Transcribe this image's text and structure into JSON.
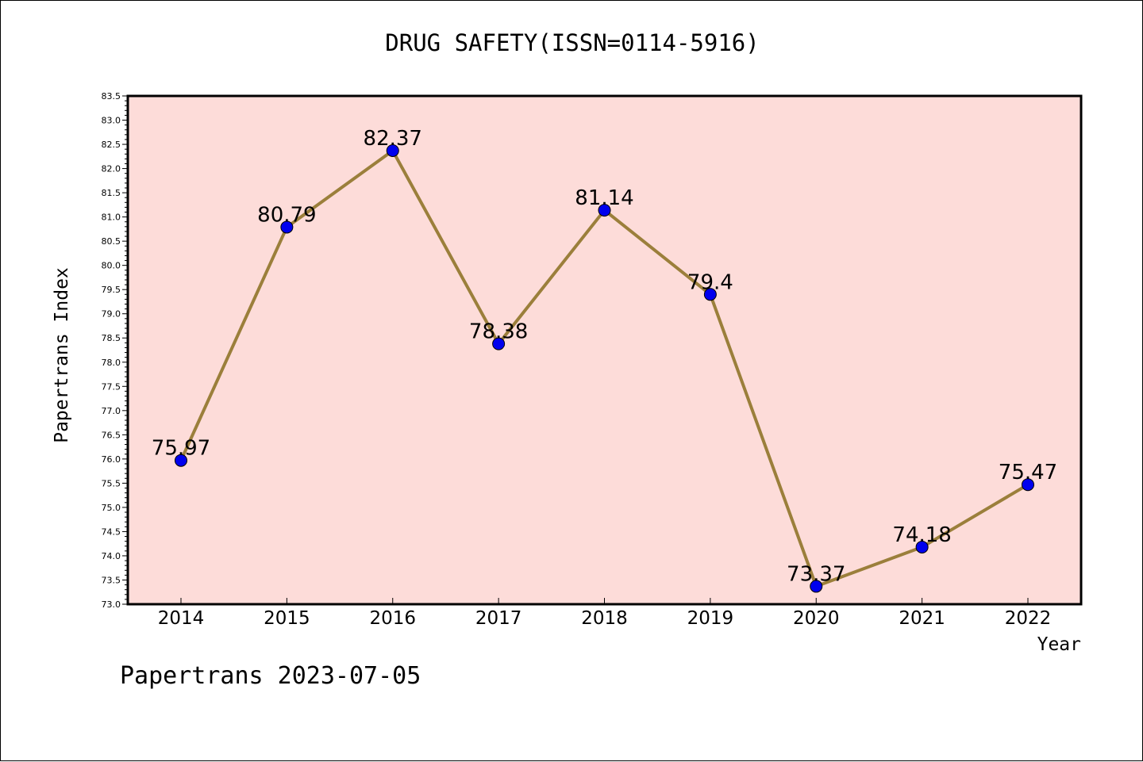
{
  "header": {
    "title": "DRUG SAFETY(ISSN=0114-5916)"
  },
  "footer": {
    "note": "Papertrans 2023-07-05"
  },
  "colors": {
    "plot_background": "#fddcd9",
    "line": "#9b7f3b",
    "marker": "#0000ee",
    "axis": "#000000"
  },
  "chart_data": {
    "type": "line",
    "title": "DRUG SAFETY(ISSN=0114-5916)",
    "xlabel": "Year",
    "ylabel": "Papertrans Index",
    "x": [
      "2014",
      "2015",
      "2016",
      "2017",
      "2018",
      "2019",
      "2020",
      "2021",
      "2022"
    ],
    "series": [
      {
        "values": [
          75.97,
          80.79,
          82.37,
          78.38,
          81.14,
          79.4,
          73.37,
          74.18,
          75.47
        ],
        "labels": [
          "75.97",
          "80.79",
          "82.37",
          "78.38",
          "81.14",
          "79.4",
          "73.37",
          "74.18",
          "75.47"
        ]
      }
    ],
    "ylim": [
      73.0,
      83.5
    ],
    "yticks": [
      "73.0",
      "73.5",
      "74.0",
      "74.5",
      "75.0",
      "75.5",
      "76.0",
      "76.5",
      "77.0",
      "77.5",
      "78.0",
      "78.5",
      "79.0",
      "79.5",
      "80.0",
      "80.5",
      "81.0",
      "81.5",
      "82.0",
      "82.5",
      "83.0",
      "83.5"
    ],
    "grid": false,
    "legend": "none"
  }
}
